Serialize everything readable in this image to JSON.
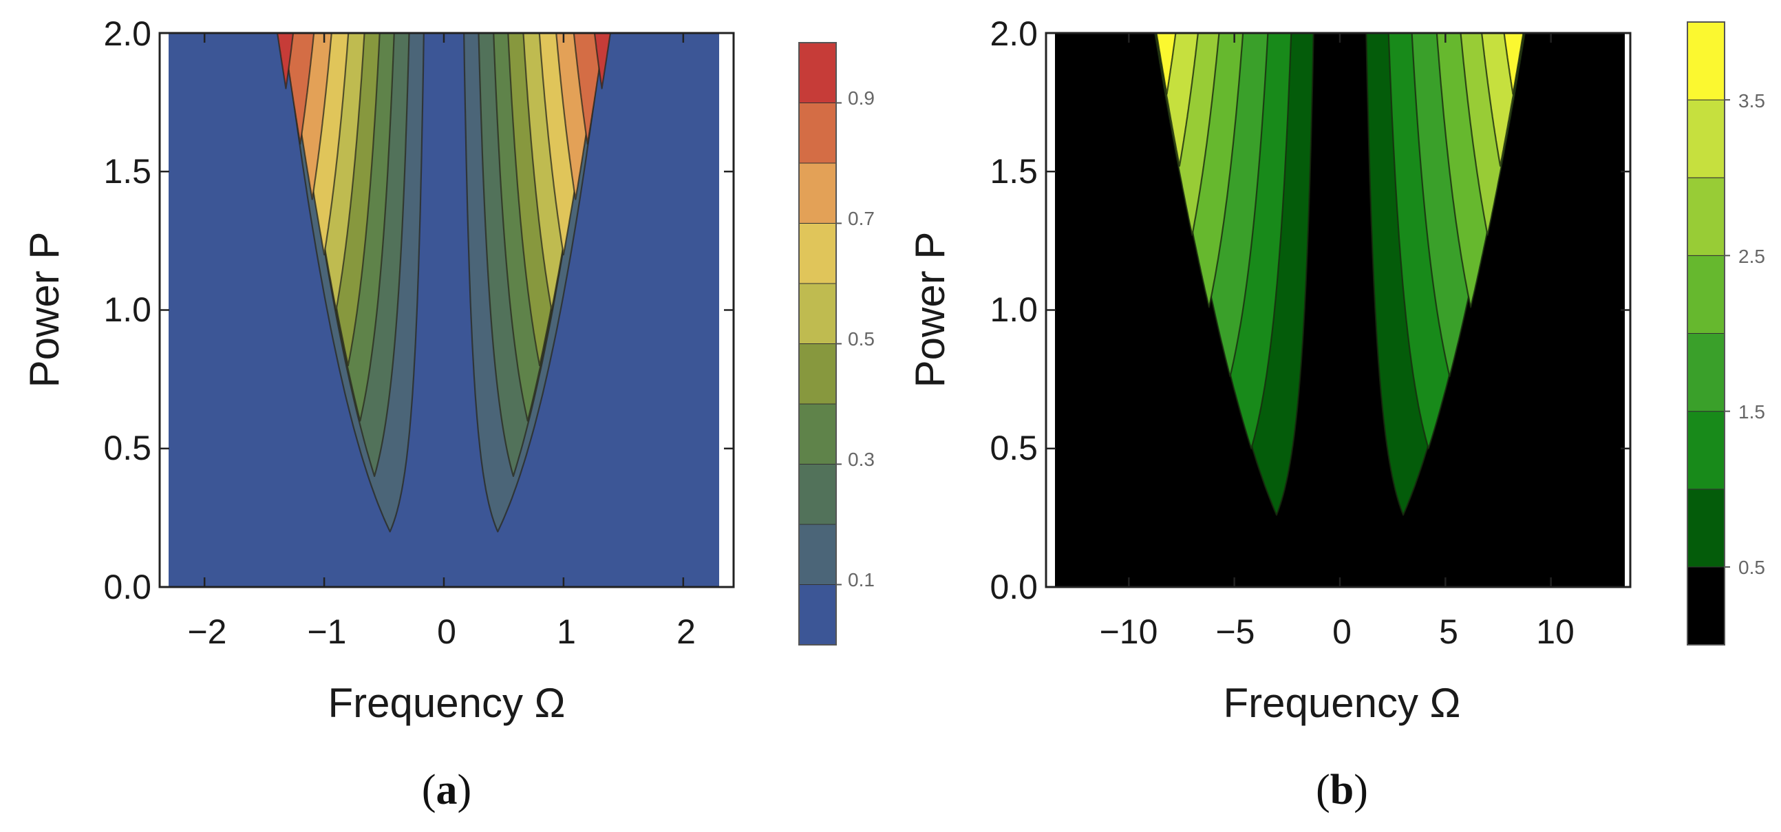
{
  "chart_data": [
    {
      "type": "contour",
      "panel_label": "a",
      "xlabel": "Frequency Ω",
      "ylabel": "Power P",
      "xlim": [
        -2.3,
        2.3
      ],
      "ylim": [
        0.0,
        2.0
      ],
      "x_ticks": [
        -2,
        -1,
        0,
        1,
        2
      ],
      "x_tick_labels": [
        "−2",
        "−1",
        "0",
        "1",
        "2"
      ],
      "y_ticks": [
        0.0,
        0.5,
        1.0,
        1.5,
        2.0
      ],
      "y_tick_labels": [
        "0.0",
        "0.5",
        "1.0",
        "1.5",
        "2.0"
      ],
      "background_color": "#3c5696",
      "threshold_curve": {
        "coef": 0.22,
        "x_minimum": 0.0
      },
      "contour_levels": [
        {
          "y_minimum": 0.2,
          "x_minimum": 0.45
        },
        {
          "y_minimum": 0.4,
          "x_minimum": 0.58
        },
        {
          "y_minimum": 0.6,
          "x_minimum": 0.7
        },
        {
          "y_minimum": 0.8,
          "x_minimum": 0.8
        },
        {
          "y_minimum": 1.0,
          "x_minimum": 0.9
        },
        {
          "y_minimum": 1.2,
          "x_minimum": 1.0
        },
        {
          "y_minimum": 1.4,
          "x_minimum": 1.1
        },
        {
          "y_minimum": 1.6,
          "x_minimum": 1.2
        },
        {
          "y_minimum": 1.8,
          "x_minimum": 1.32
        }
      ],
      "colorbar": {
        "range": [
          0.0,
          1.0
        ],
        "band_edges": [
          0.0,
          0.1,
          0.2,
          0.3,
          0.4,
          0.5,
          0.6,
          0.7,
          0.8,
          0.9,
          1.0
        ],
        "band_colors": [
          "#3c5696",
          "#4b6578",
          "#52725a",
          "#5f834a",
          "#87983e",
          "#bfbb50",
          "#e0c55a",
          "#e3a157",
          "#d46d45",
          "#c63c38"
        ],
        "tick_labels": [
          "0.1",
          "0.3",
          "0.5",
          "0.7",
          "0.9"
        ],
        "tick_values": [
          0.1,
          0.3,
          0.5,
          0.7,
          0.9
        ]
      }
    },
    {
      "type": "contour",
      "panel_label": "b",
      "xlabel": "Frequency Ω",
      "ylabel": "Power P",
      "xlim": [
        -13.5,
        13.5
      ],
      "ylim": [
        0.0,
        2.0
      ],
      "x_ticks": [
        -10,
        -5,
        0,
        5,
        10
      ],
      "x_tick_labels": [
        "−10",
        "−5",
        "0",
        "5",
        "10"
      ],
      "y_ticks": [
        0.0,
        0.5,
        1.0,
        1.5,
        2.0
      ],
      "y_tick_labels": [
        "0.0",
        "0.5",
        "1.0",
        "1.5",
        "2.0"
      ],
      "background_color": "#000000",
      "threshold_curve": {
        "coef": 0.0115,
        "x_minimum": 0.0
      },
      "contour_levels": [
        {
          "y_minimum": 0.26,
          "x_minimum": 3.0
        },
        {
          "y_minimum": 0.5,
          "x_minimum": 4.2
        },
        {
          "y_minimum": 0.76,
          "x_minimum": 5.2
        },
        {
          "y_minimum": 1.01,
          "x_minimum": 6.2
        },
        {
          "y_minimum": 1.27,
          "x_minimum": 7.0
        },
        {
          "y_minimum": 1.52,
          "x_minimum": 7.6
        },
        {
          "y_minimum": 1.78,
          "x_minimum": 8.2
        }
      ],
      "colorbar": {
        "range": [
          0.0,
          4.0
        ],
        "band_edges": [
          0.0,
          0.5,
          1.0,
          1.5,
          2.0,
          2.5,
          3.0,
          3.5,
          4.0
        ],
        "band_colors": [
          "#000000",
          "#045c0a",
          "#188a1a",
          "#3aa02a",
          "#66b82e",
          "#98cc36",
          "#c6e03e",
          "#fbf830"
        ],
        "tick_labels": [
          "0.5",
          "1.5",
          "2.5",
          "3.5"
        ],
        "tick_values": [
          0.5,
          1.5,
          2.5,
          3.5
        ]
      }
    }
  ]
}
